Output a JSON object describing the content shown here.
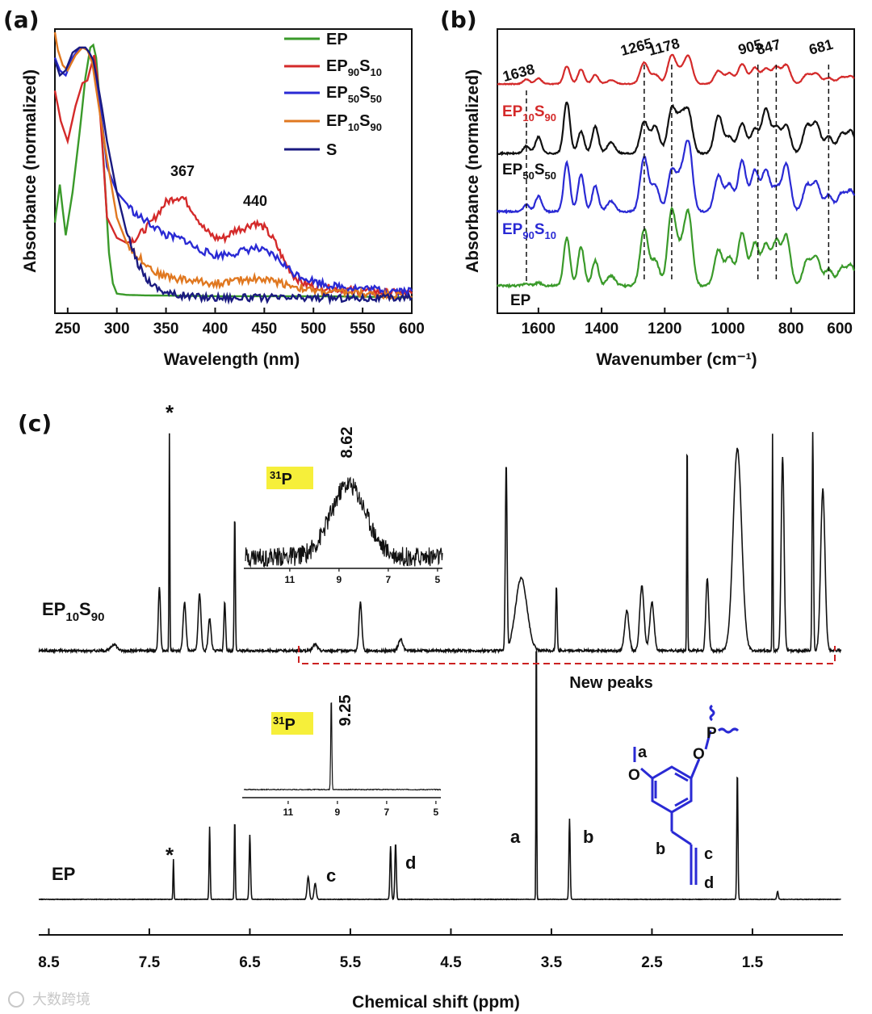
{
  "panels": {
    "a": "(a)",
    "b": "(b)",
    "c": "(c)"
  },
  "watermark": "大数跨境",
  "chart_data": [
    {
      "id": "a",
      "type": "line",
      "title": "",
      "xlabel": "Wavelength (nm)",
      "ylabel": "Absorbance (normalized)",
      "xlim": [
        237,
        600
      ],
      "ylim": [
        0,
        1.05
      ],
      "xticks": [
        250,
        300,
        350,
        400,
        450,
        500,
        550,
        600
      ],
      "tick_labels": [
        "250",
        "300",
        "350",
        "400",
        "450",
        "500",
        "550",
        "600"
      ],
      "legend_position": "top-right",
      "annotations": [
        {
          "text": "367",
          "x": 367
        },
        {
          "text": "440",
          "x": 440
        }
      ],
      "series": [
        {
          "name": "EP",
          "color": "#3a9a2a",
          "x": [
            237,
            242,
            248,
            255,
            262,
            268,
            273,
            276,
            279,
            283,
            288,
            292,
            296,
            300,
            310,
            330,
            360,
            400,
            450,
            500,
            550,
            600
          ],
          "y": [
            0.3,
            0.45,
            0.25,
            0.42,
            0.65,
            0.87,
            0.99,
            1.0,
            0.95,
            0.75,
            0.45,
            0.18,
            0.06,
            0.02,
            0.015,
            0.013,
            0.012,
            0.01,
            0.01,
            0.01,
            0.008,
            0.005
          ]
        },
        {
          "name": "EP90S10",
          "color": "#d42a2a",
          "x": [
            237,
            243,
            250,
            258,
            265,
            270,
            274,
            277,
            280,
            285,
            290,
            300,
            310,
            320,
            335,
            350,
            360,
            367,
            375,
            390,
            400,
            410,
            420,
            430,
            440,
            450,
            460,
            470,
            480,
            490,
            500,
            520,
            550,
            600
          ],
          "y": [
            0.82,
            0.7,
            0.62,
            0.76,
            0.85,
            0.86,
            0.92,
            0.96,
            0.88,
            0.62,
            0.32,
            0.24,
            0.22,
            0.24,
            0.3,
            0.38,
            0.4,
            0.4,
            0.36,
            0.27,
            0.24,
            0.24,
            0.27,
            0.28,
            0.3,
            0.28,
            0.23,
            0.15,
            0.09,
            0.06,
            0.05,
            0.04,
            0.03,
            0.02
          ]
        },
        {
          "name": "EP50S50",
          "color": "#2a2ad4",
          "x": [
            237,
            242,
            248,
            255,
            262,
            268,
            272,
            276,
            280,
            285,
            290,
            300,
            320,
            340,
            350,
            360,
            370,
            380,
            400,
            420,
            440,
            460,
            480,
            500,
            520,
            550,
            600
          ],
          "y": [
            0.95,
            0.9,
            0.88,
            0.95,
            0.99,
            0.99,
            0.97,
            0.93,
            0.84,
            0.7,
            0.52,
            0.42,
            0.33,
            0.28,
            0.25,
            0.24,
            0.23,
            0.2,
            0.17,
            0.18,
            0.2,
            0.17,
            0.1,
            0.07,
            0.05,
            0.04,
            0.03
          ]
        },
        {
          "name": "EP10S90",
          "color": "#e07820",
          "x": [
            237,
            240,
            245,
            250,
            258,
            265,
            270,
            275,
            280,
            290,
            300,
            310,
            320,
            330,
            340,
            360,
            380,
            400,
            420,
            440,
            460,
            480,
            500,
            550,
            600
          ],
          "y": [
            1.05,
            0.98,
            0.92,
            0.9,
            0.96,
            0.99,
            0.98,
            0.93,
            0.8,
            0.55,
            0.32,
            0.22,
            0.17,
            0.14,
            0.1,
            0.08,
            0.07,
            0.06,
            0.07,
            0.08,
            0.07,
            0.05,
            0.03,
            0.02,
            0.01
          ]
        },
        {
          "name": "S",
          "color": "#1a1a80",
          "x": [
            237,
            242,
            248,
            255,
            262,
            268,
            272,
            276,
            280,
            285,
            290,
            300,
            310,
            320,
            330,
            340,
            350,
            360,
            380,
            400,
            450,
            500,
            550,
            600
          ],
          "y": [
            0.94,
            0.88,
            0.9,
            0.97,
            0.99,
            0.99,
            0.97,
            0.94,
            0.86,
            0.75,
            0.62,
            0.42,
            0.26,
            0.15,
            0.08,
            0.045,
            0.025,
            0.015,
            0.008,
            0.005,
            0.003,
            0.003,
            0.003,
            0.003
          ]
        }
      ]
    },
    {
      "id": "b",
      "type": "line",
      "title": "",
      "xlabel": "Wavenumber (cm⁻¹)",
      "ylabel": "Absorbance (normalized)",
      "xlim": [
        1730,
        600
      ],
      "xticks": [
        1600,
        1400,
        1200,
        1000,
        800,
        600
      ],
      "tick_labels": [
        "1600",
        "1400",
        "1200",
        "1000",
        "800",
        "600"
      ],
      "reference_lines": [
        1638,
        1265,
        1178,
        905,
        847,
        681
      ],
      "reference_labels": [
        "1638",
        "1265",
        "1178",
        "905",
        "847",
        "681"
      ],
      "series": [
        {
          "name": "EP10S90",
          "color": "#d42a2a"
        },
        {
          "name": "EP50S50",
          "color": "#111111"
        },
        {
          "name": "EP90S10",
          "color": "#2a2ad4"
        },
        {
          "name": "EP",
          "color": "#3a9a2a"
        }
      ]
    },
    {
      "id": "c",
      "type": "line",
      "title": "",
      "xlabel": "Chemical shift (ppm)",
      "xlim": [
        8.6,
        0.6
      ],
      "xticks": [
        8.5,
        7.5,
        6.5,
        5.5,
        4.5,
        3.5,
        2.5,
        1.5
      ],
      "tick_labels": [
        "8.5",
        "7.5",
        "6.5",
        "5.5",
        "4.5",
        "3.5",
        "2.5",
        "1.5"
      ],
      "series": [
        {
          "name": "EP10S90",
          "label": "EP10S90",
          "inset": {
            "nucleus": "31P",
            "peak": "8.62",
            "xticks": [
              "11",
              "9",
              "7",
              "5"
            ]
          }
        },
        {
          "name": "EP",
          "label": "EP",
          "inset": {
            "nucleus": "31P",
            "peak": "9.25",
            "xticks": [
              "11",
              "9",
              "7",
              "5"
            ]
          },
          "peak_labels": [
            "*",
            "c",
            "d",
            "a",
            "b"
          ]
        }
      ],
      "annotations": [
        {
          "text": "New peaks",
          "range": [
            6.0,
            0.7
          ],
          "color": "#cc2222"
        }
      ],
      "structure_labels": [
        "a",
        "b",
        "c",
        "d"
      ]
    }
  ]
}
